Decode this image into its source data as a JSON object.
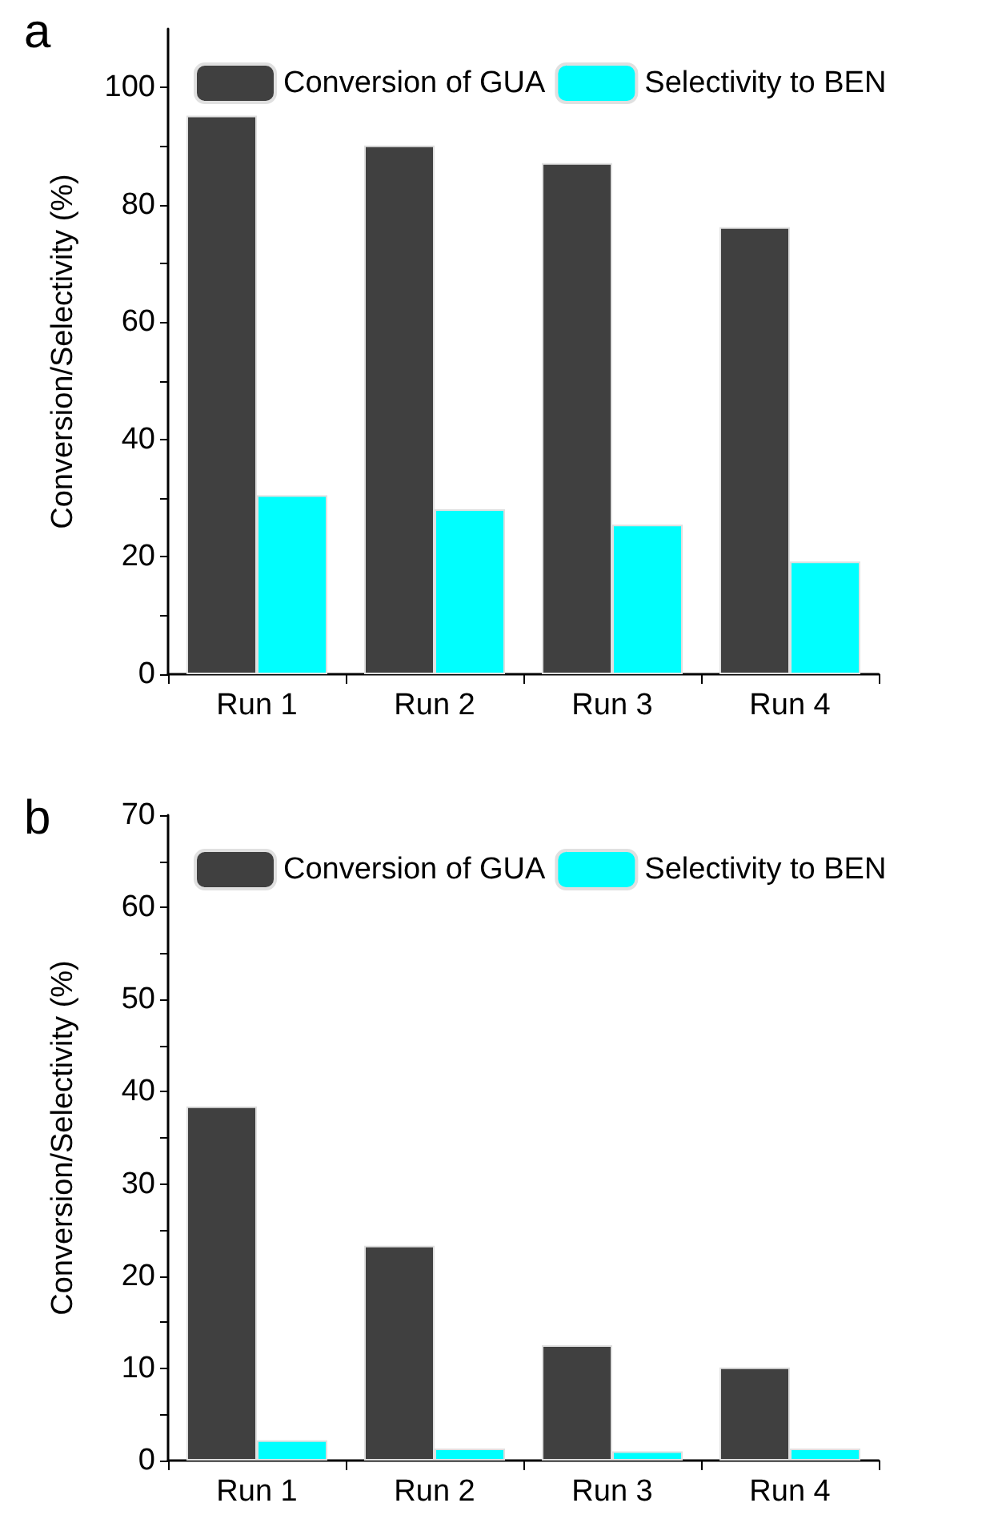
{
  "chart_data": [
    {
      "type": "bar",
      "title": "a",
      "ylabel": "Conversion/Selectivity (%)",
      "categories": [
        "Run 1",
        "Run 2",
        "Run 3",
        "Run 4"
      ],
      "series": [
        {
          "name": "Conversion of GUA",
          "color": "#404040",
          "values": [
            95.2,
            90.1,
            87.1,
            76.2
          ]
        },
        {
          "name": "Selectivity to BEN",
          "color": "#00ffff",
          "values": [
            30.5,
            28.1,
            25.5,
            19.2
          ]
        }
      ],
      "ylim": [
        0,
        110
      ],
      "yticks": [
        0,
        {
          "value": 10,
          "label": null
        },
        20,
        {
          "value": 30,
          "label": null
        },
        40,
        {
          "value": 50,
          "label": null
        },
        60,
        {
          "value": 70,
          "label": null
        },
        80,
        {
          "value": 90,
          "label": null
        },
        100
      ],
      "grid": false,
      "legend": "top"
    },
    {
      "type": "bar",
      "title": "b",
      "ylabel": "Conversion/Selectivity (%)",
      "categories": [
        "Run 1",
        "Run 2",
        "Run 3",
        "Run 4"
      ],
      "series": [
        {
          "name": "Conversion of GUA",
          "color": "#404040",
          "values": [
            38.4,
            23.3,
            12.5,
            10.1
          ]
        },
        {
          "name": "Selectivity to BEN",
          "color": "#00ffff",
          "values": [
            2.2,
            1.3,
            1.0,
            1.3
          ]
        }
      ],
      "ylim": [
        0,
        70
      ],
      "yticks": [
        0,
        {
          "value": 5,
          "label": null
        },
        10,
        {
          "value": 15,
          "label": null
        },
        20,
        {
          "value": 25,
          "label": null
        },
        30,
        {
          "value": 35,
          "label": null
        },
        40,
        {
          "value": 45,
          "label": null
        },
        50,
        {
          "value": 55,
          "label": null
        },
        60,
        {
          "value": 65,
          "label": null
        },
        70
      ],
      "grid": false,
      "legend": "top"
    }
  ]
}
